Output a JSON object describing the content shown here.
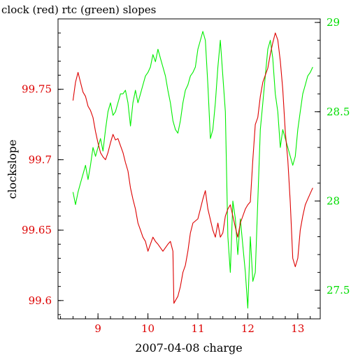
{
  "chart_data": {
    "type": "line",
    "title": "clock (red) rtc (green) slopes",
    "xlabel": "2007-04-08 charge",
    "ylabel": "clockslope",
    "ylabel_right": "",
    "xlim": [
      8.2,
      13.45
    ],
    "ylim": [
      99.587,
      99.8
    ],
    "ylim_right": [
      27.34,
      29.02
    ],
    "xticks": [
      9,
      10,
      11,
      12,
      13
    ],
    "yticks": [
      99.6,
      99.65,
      99.7,
      99.75
    ],
    "yticks_right": [
      27.5,
      28,
      28.5,
      29
    ],
    "tick_labels": {
      "x": [
        "9",
        "10",
        "11",
        "12",
        "13"
      ],
      "y_left": [
        "99.6",
        "99.65",
        "99.7",
        "99.75"
      ],
      "y_right": [
        "27.5",
        "28",
        "28.5",
        "29"
      ]
    },
    "grid": false,
    "legend": "none",
    "series": [
      {
        "axis": "left",
        "color": "#dd0000",
        "x": [
          8.5,
          8.55,
          8.6,
          8.65,
          8.7,
          8.75,
          8.8,
          8.85,
          8.9,
          8.95,
          9.0,
          9.05,
          9.1,
          9.15,
          9.2,
          9.25,
          9.3,
          9.35,
          9.4,
          9.45,
          9.5,
          9.55,
          9.6,
          9.65,
          9.7,
          9.75,
          9.8,
          9.85,
          9.9,
          9.95,
          10.0,
          10.05,
          10.1,
          10.15,
          10.2,
          10.3,
          10.4,
          10.45,
          10.5,
          10.52,
          10.55,
          10.6,
          10.65,
          10.7,
          10.75,
          10.8,
          10.85,
          10.9,
          11.0,
          11.05,
          11.1,
          11.15,
          11.2,
          11.3,
          11.35,
          11.4,
          11.45,
          11.5,
          11.55,
          11.6,
          11.65,
          11.7,
          11.75,
          11.8,
          11.85,
          11.9,
          11.95,
          12.0,
          12.05,
          12.1,
          12.15,
          12.2,
          12.25,
          12.3,
          12.35,
          12.4,
          12.45,
          12.5,
          12.55,
          12.6,
          12.65,
          12.7,
          12.75,
          12.8,
          12.85,
          12.9,
          12.95,
          13.0,
          13.05,
          13.1,
          13.15,
          13.2,
          13.25,
          13.3
        ],
        "values": [
          99.742,
          99.755,
          99.762,
          99.755,
          99.748,
          99.745,
          99.738,
          99.735,
          99.73,
          99.72,
          99.712,
          99.705,
          99.702,
          99.7,
          99.705,
          99.712,
          99.718,
          99.714,
          99.715,
          99.71,
          99.705,
          99.698,
          99.692,
          99.68,
          99.672,
          99.665,
          99.655,
          99.65,
          99.645,
          99.642,
          99.635,
          99.64,
          99.645,
          99.642,
          99.64,
          99.635,
          99.64,
          99.642,
          99.635,
          99.598,
          99.6,
          99.603,
          99.61,
          99.62,
          99.625,
          99.635,
          99.648,
          99.655,
          99.658,
          99.665,
          99.672,
          99.678,
          99.665,
          99.65,
          99.645,
          99.655,
          99.645,
          99.648,
          99.66,
          99.665,
          99.668,
          99.66,
          99.652,
          99.645,
          99.655,
          99.66,
          99.665,
          99.668,
          99.67,
          99.7,
          99.725,
          99.73,
          99.745,
          99.755,
          99.76,
          99.765,
          99.775,
          99.783,
          99.79,
          99.785,
          99.77,
          99.75,
          99.72,
          99.7,
          99.67,
          99.63,
          99.624,
          99.63,
          99.65,
          99.66,
          99.668,
          99.672,
          99.676,
          99.68
        ]
      },
      {
        "axis": "right",
        "color": "#00ee00",
        "x": [
          8.5,
          8.55,
          8.6,
          8.65,
          8.7,
          8.75,
          8.8,
          8.85,
          8.9,
          8.95,
          9.0,
          9.05,
          9.1,
          9.15,
          9.2,
          9.25,
          9.3,
          9.35,
          9.4,
          9.45,
          9.5,
          9.55,
          9.6,
          9.65,
          9.7,
          9.75,
          9.8,
          9.85,
          9.9,
          9.95,
          10.0,
          10.05,
          10.1,
          10.15,
          10.2,
          10.25,
          10.3,
          10.35,
          10.4,
          10.45,
          10.5,
          10.55,
          10.6,
          10.65,
          10.7,
          10.75,
          10.8,
          10.85,
          10.9,
          10.95,
          11.0,
          11.05,
          11.1,
          11.15,
          11.2,
          11.25,
          11.3,
          11.35,
          11.4,
          11.45,
          11.5,
          11.55,
          11.6,
          11.65,
          11.7,
          11.75,
          11.8,
          11.85,
          11.9,
          11.95,
          12.0,
          12.05,
          12.1,
          12.15,
          12.2,
          12.25,
          12.3,
          12.35,
          12.4,
          12.45,
          12.5,
          12.55,
          12.6,
          12.65,
          12.7,
          12.75,
          12.8,
          12.85,
          12.9,
          12.95,
          13.0,
          13.05,
          13.1,
          13.15,
          13.2,
          13.25,
          13.3
        ],
        "values": [
          28.05,
          27.98,
          28.05,
          28.1,
          28.15,
          28.2,
          28.12,
          28.2,
          28.3,
          28.25,
          28.3,
          28.35,
          28.28,
          28.4,
          28.5,
          28.55,
          28.48,
          28.5,
          28.55,
          28.6,
          28.6,
          28.62,
          28.55,
          28.42,
          28.55,
          28.62,
          28.55,
          28.6,
          28.65,
          28.7,
          28.72,
          28.75,
          28.82,
          28.78,
          28.85,
          28.8,
          28.75,
          28.7,
          28.62,
          28.55,
          28.45,
          28.4,
          28.38,
          28.45,
          28.55,
          28.62,
          28.65,
          28.7,
          28.72,
          28.75,
          28.85,
          28.9,
          28.95,
          28.9,
          28.65,
          28.35,
          28.4,
          28.55,
          28.75,
          28.9,
          28.7,
          28.5,
          27.8,
          27.6,
          28.0,
          27.9,
          27.7,
          27.9,
          27.75,
          27.6,
          27.4,
          27.8,
          27.55,
          27.6,
          28.0,
          28.4,
          28.55,
          28.7,
          28.85,
          28.9,
          28.8,
          28.6,
          28.5,
          28.3,
          28.4,
          28.35,
          28.3,
          28.25,
          28.2,
          28.25,
          28.4,
          28.5,
          28.6,
          28.65,
          28.7,
          28.72,
          28.75
        ]
      }
    ],
    "colors": {
      "left_axis": "#dd0000",
      "right_axis": "#00dd00",
      "frame": "#000000"
    }
  }
}
